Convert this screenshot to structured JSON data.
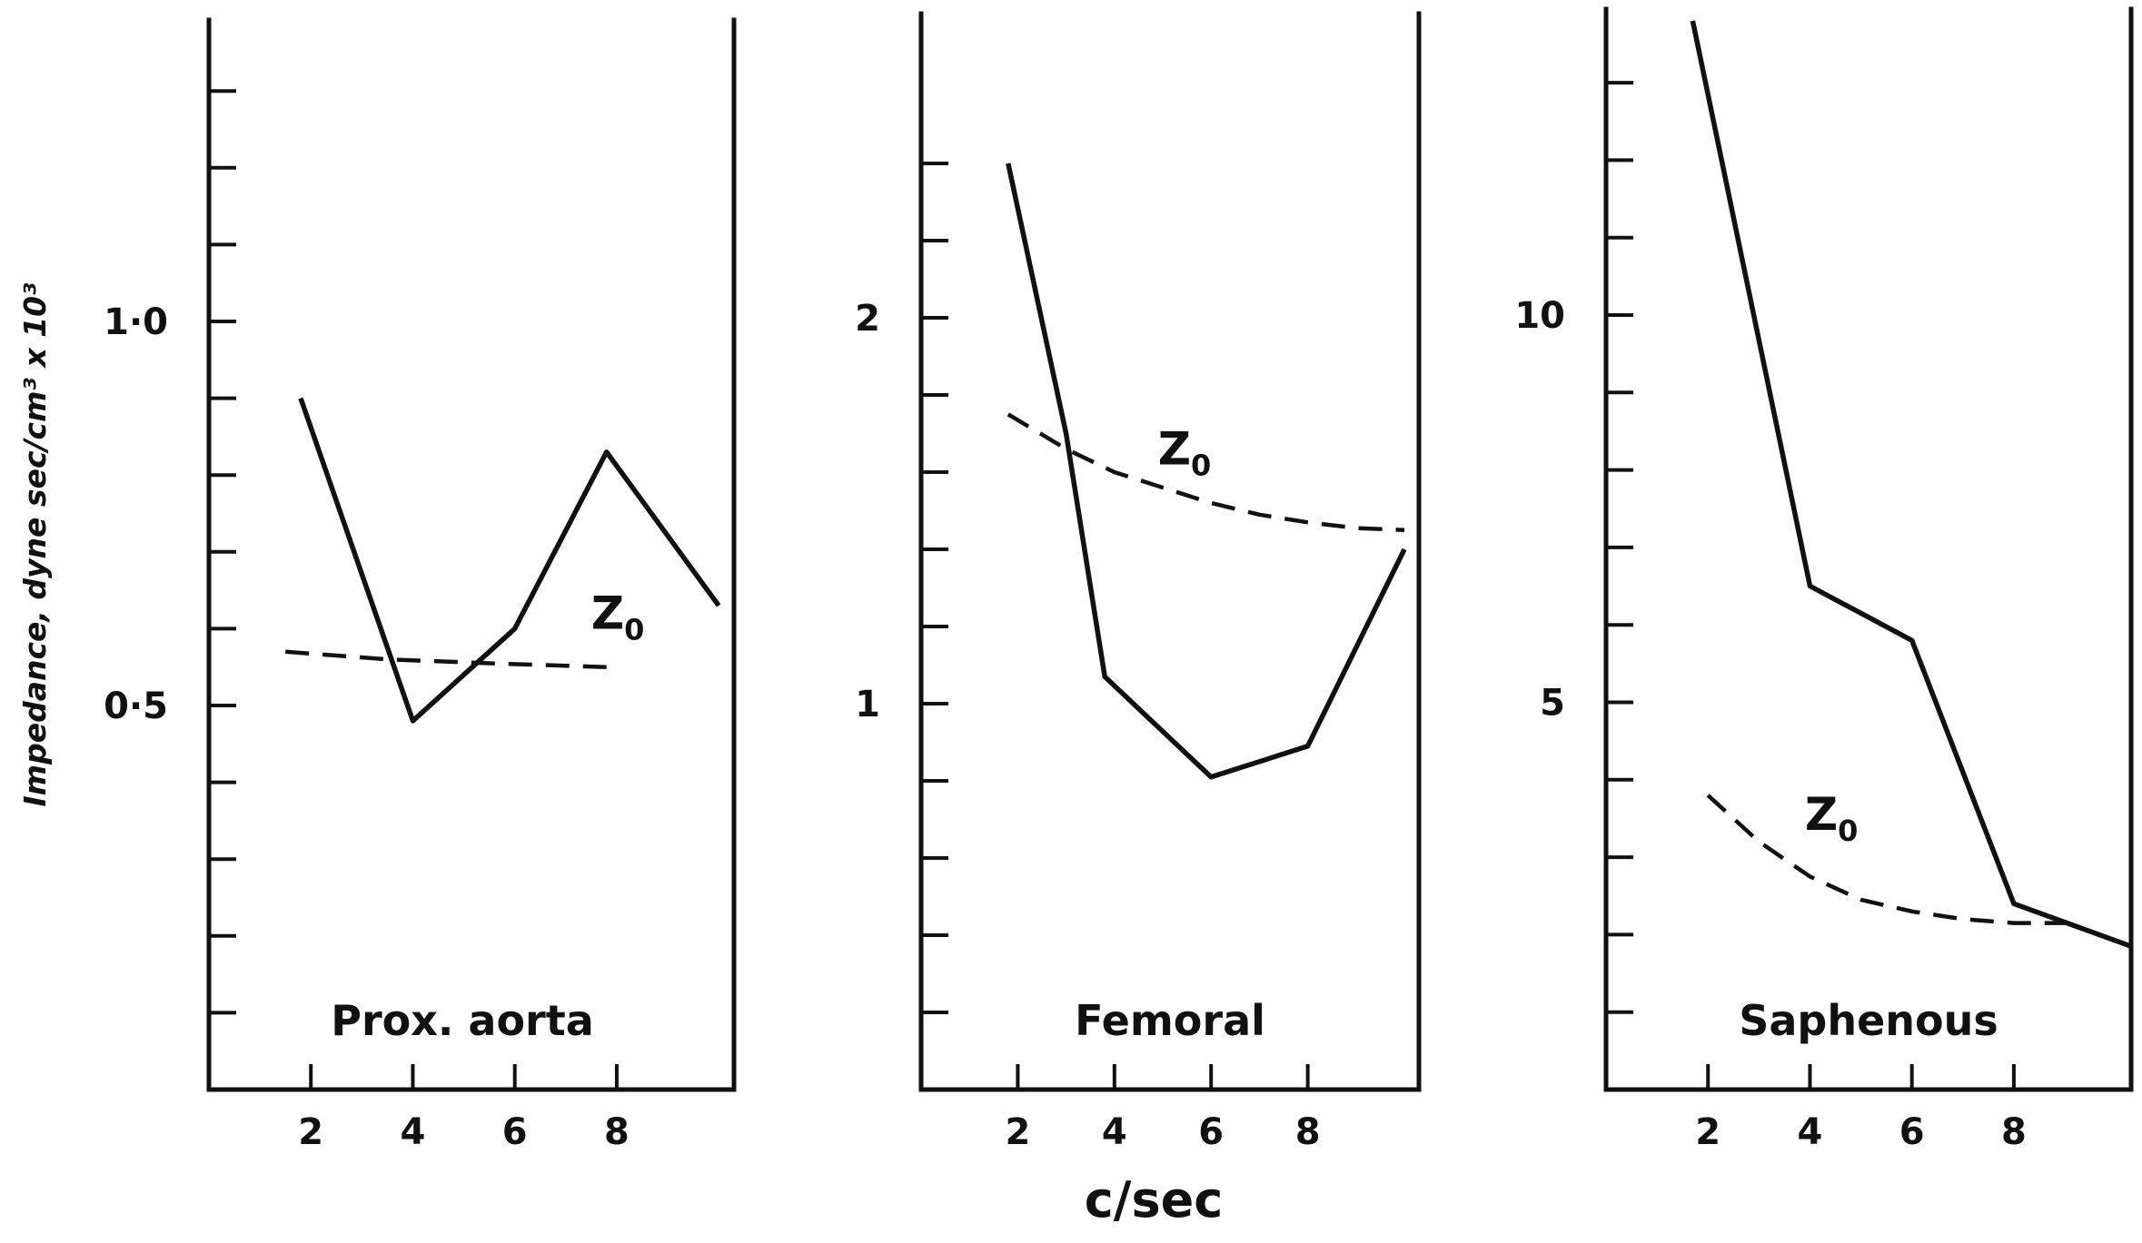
{
  "figure": {
    "xlabel": "c/sec",
    "ylabel": "Impedance,  dyne sec/cm³ x 10³"
  },
  "chart_data": [
    {
      "type": "line",
      "title": "Prox. aorta",
      "x_ticks": [
        2,
        4,
        6,
        8
      ],
      "y_ticks": [
        0.1,
        0.2,
        0.3,
        0.4,
        0.5,
        0.6,
        0.7,
        0.8,
        0.9,
        1.0,
        1.1,
        1.2,
        1.3
      ],
      "y_tick_labels": [
        {
          "value": 0.5,
          "label": "0·5"
        },
        {
          "value": 1.0,
          "label": "1·0"
        }
      ],
      "xlim": [
        0,
        10.3
      ],
      "ylim": [
        0,
        1.4
      ],
      "series": [
        {
          "role": "impedance",
          "style": "solid",
          "x": [
            1.8,
            4.0,
            6.0,
            7.8,
            10.0
          ],
          "y": [
            0.9,
            0.48,
            0.6,
            0.83,
            0.63
          ]
        },
        {
          "name": "Z",
          "subscript": "0",
          "role": "characteristic-impedance",
          "style": "dashed",
          "x": [
            1.5,
            3.5,
            5.5,
            7.8
          ],
          "y": [
            0.57,
            0.56,
            0.555,
            0.55
          ],
          "label_at": {
            "x": 7.5,
            "y": 0.6
          }
        }
      ]
    },
    {
      "type": "line",
      "title": "Femoral",
      "x_ticks": [
        2,
        4,
        6,
        8
      ],
      "y_ticks": [
        0.2,
        0.4,
        0.6,
        0.8,
        1.0,
        1.2,
        1.4,
        1.6,
        1.8,
        2.0,
        2.2,
        2.4
      ],
      "y_tick_labels": [
        {
          "value": 1,
          "label": "1"
        },
        {
          "value": 2,
          "label": "2"
        }
      ],
      "xlim": [
        0,
        10.3
      ],
      "ylim": [
        0,
        2.8
      ],
      "series": [
        {
          "role": "impedance",
          "style": "solid",
          "x": [
            1.8,
            3.0,
            3.8,
            6.0,
            8.0,
            10.0
          ],
          "y": [
            2.4,
            1.7,
            1.07,
            0.81,
            0.89,
            1.4
          ],
          "label_at": null
        },
        {
          "name": "Z",
          "subscript": "0",
          "role": "characteristic-impedance",
          "style": "dashed",
          "x": [
            1.8,
            3.0,
            4.0,
            5.0,
            6.0,
            7.0,
            8.0,
            9.0,
            10.0
          ],
          "y": [
            1.75,
            1.66,
            1.6,
            1.56,
            1.52,
            1.49,
            1.47,
            1.455,
            1.45
          ],
          "label_at": {
            "x": 4.9,
            "y": 1.62
          }
        }
      ]
    },
    {
      "type": "line",
      "title": "Saphenous",
      "x_ticks": [
        2,
        4,
        6,
        8
      ],
      "y_ticks": [
        1,
        2,
        3,
        4,
        5,
        6,
        7,
        8,
        9,
        10,
        11,
        12,
        13
      ],
      "y_tick_labels": [
        {
          "value": 5,
          "label": "5"
        },
        {
          "value": 10,
          "label": "10"
        }
      ],
      "xlim": [
        0,
        10.3
      ],
      "ylim": [
        0,
        14
      ],
      "series": [
        {
          "role": "impedance",
          "style": "solid",
          "x": [
            1.7,
            4.0,
            6.0,
            8.0,
            10.3
          ],
          "y": [
            13.8,
            6.5,
            5.8,
            2.4,
            1.85
          ],
          "label_at": null
        },
        {
          "name": "Z",
          "subscript": "0",
          "role": "characteristic-impedance",
          "style": "dashed",
          "x": [
            2.0,
            3.0,
            4.0,
            5.0,
            6.0,
            7.0,
            8.0,
            9.0
          ],
          "y": [
            3.8,
            3.2,
            2.75,
            2.45,
            2.3,
            2.2,
            2.15,
            2.15
          ],
          "label_at": {
            "x": 3.9,
            "y": 3.35
          }
        }
      ]
    }
  ]
}
